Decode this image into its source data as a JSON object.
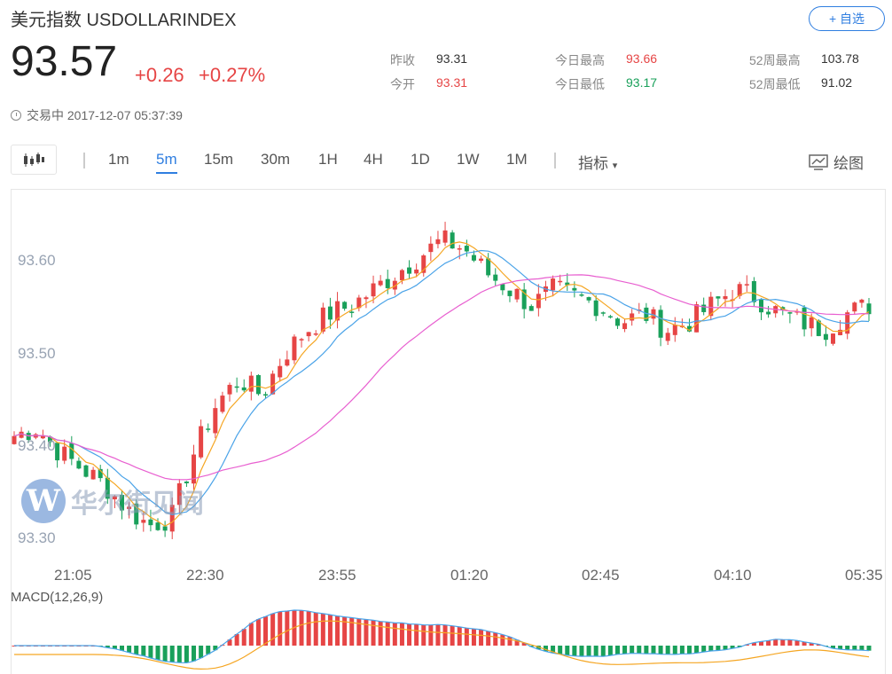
{
  "header": {
    "title": "美元指数 USDOLLARINDEX",
    "watch_label": "+ 自选",
    "price": "93.57",
    "change": "+0.26",
    "change_pct": "+0.27%",
    "status": "交易中 2017-12-07 05:37:39"
  },
  "stats": {
    "prev_close_k": "昨收",
    "prev_close_v": "93.31",
    "open_k": "今开",
    "open_v": "93.31",
    "high_k": "今日最高",
    "high_v": "93.66",
    "low_k": "今日最低",
    "low_v": "93.17",
    "w52_high_k": "52周最高",
    "w52_high_v": "103.78",
    "w52_low_k": "52周最低",
    "w52_low_v": "91.02"
  },
  "toolbar": {
    "timeframes": [
      "1m",
      "5m",
      "15m",
      "30m",
      "1H",
      "4H",
      "1D",
      "1W",
      "1M"
    ],
    "active": "5m",
    "indicator_label": "指标",
    "draw_label": "绘图"
  },
  "chart": {
    "macd_label": "MACD(12,26,9)",
    "watermark": "华尔街见闻",
    "watermark_letter": "W"
  },
  "colors": {
    "up": "#e64545",
    "down": "#19a05a",
    "accent": "#2f7ee0",
    "ma1": "#f5a623",
    "ma2": "#4aa3e8",
    "ma3": "#e85fd0"
  },
  "chart_data": {
    "type": "candlestick",
    "ylim": [
      93.28,
      93.71
    ],
    "y_ticks": [
      "93.60",
      "93.50",
      "93.40",
      "93.30"
    ],
    "x_ticks": [
      "21:05",
      "22:30",
      "23:55",
      "01:20",
      "02:45",
      "04:10",
      "05:35"
    ],
    "close_path": [
      93.42,
      93.43,
      93.4,
      93.38,
      93.36,
      93.33,
      93.31,
      93.32,
      93.4,
      93.46,
      93.49,
      93.47,
      93.52,
      93.55,
      93.57,
      93.58,
      93.6,
      93.62,
      93.64,
      93.66,
      93.65,
      93.62,
      93.6,
      93.58,
      93.6,
      93.59,
      93.58,
      93.56,
      93.57,
      93.55,
      93.56,
      93.58,
      93.6,
      93.59,
      93.57,
      93.56,
      93.55,
      93.57,
      93.58
    ]
  }
}
